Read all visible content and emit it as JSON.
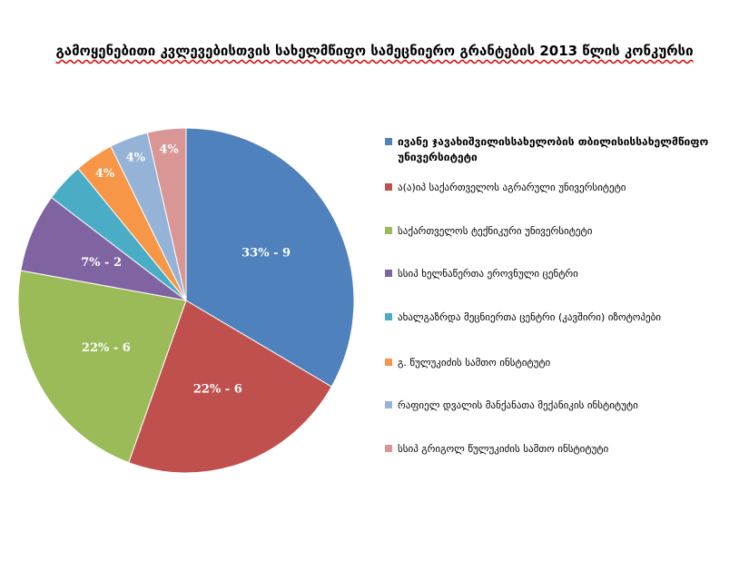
{
  "chart_data": {
    "type": "pie",
    "title": "გამოყენებითი კვლევებისთვის სახელმწიფო სამეცნიერო გრანტების 2013 წლის კონკურსი",
    "categories": [
      "ივანე ჯავახიშვილისსახელობის თბილისისსახელმწიფო უნივერსიტეტი",
      "ა(ა)იპ საქართველოს აგრარული უნივერსიტეტი",
      "საქართველოს ტექნიკური უნივერსიტეტი",
      "სსიპ ხელნაწერთა ეროვნული ცენტრი",
      "ახალგაზრდა მეცნიერთა ცენტრი (კავშირი) იზოტოპები",
      "გ. წულუკიძის სამთო ინსტიტუტი",
      "რაფიელ დვალის მანქანათა მექანიკის ინსტიტუტი",
      "სსიპ გრიგოლ წულუკიძის სამთო ინსტიტუტი"
    ],
    "values": [
      9,
      6,
      6,
      2,
      1,
      1,
      1,
      1
    ],
    "value_labels": [
      "33% - 9",
      "22% - 6",
      "22% - 6",
      "7% - 2",
      null,
      "4%",
      "4%",
      "4%"
    ],
    "colors": [
      "#4f81bd",
      "#c0504d",
      "#9bbb59",
      "#8064a2",
      "#4bacc6",
      "#f79646",
      "#95b3d7",
      "#d99694"
    ],
    "legend": "right"
  }
}
